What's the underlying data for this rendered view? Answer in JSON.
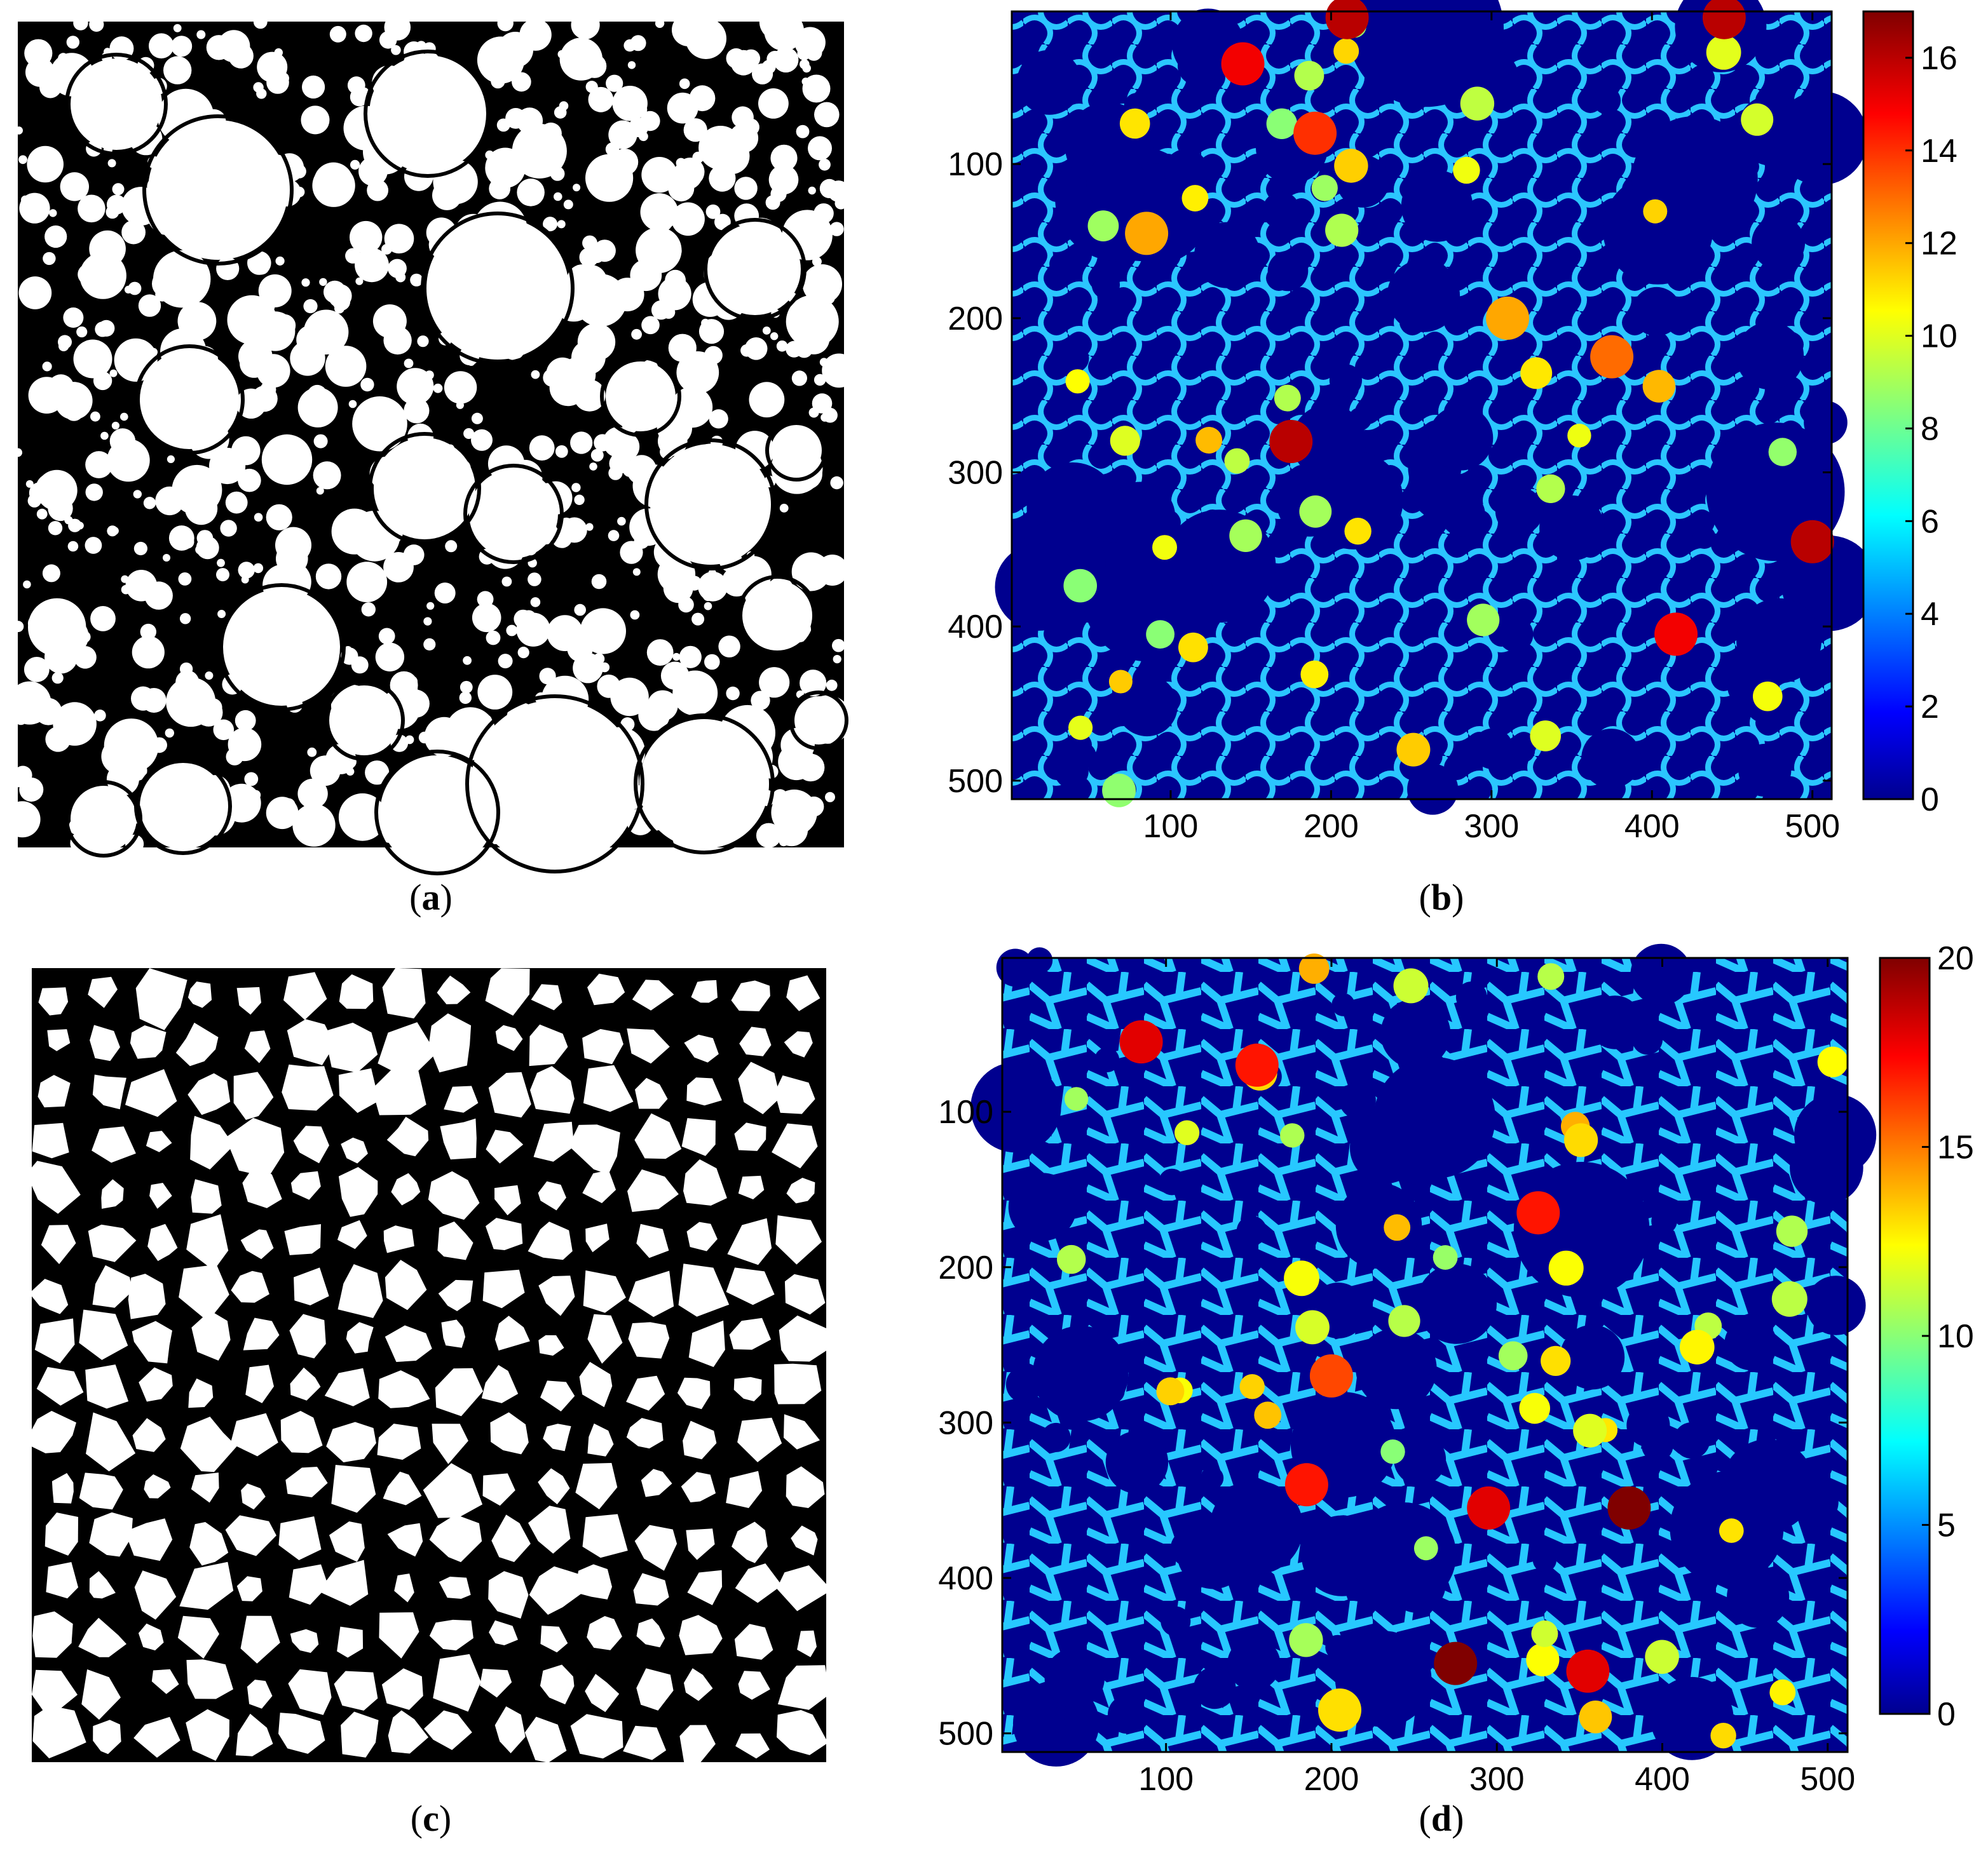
{
  "panels": [
    {
      "label": "(a)",
      "type": "binary-image",
      "content": "circular particles"
    },
    {
      "label": "(b)",
      "type": "heatmap"
    },
    {
      "label": "(c)",
      "type": "binary-image",
      "content": "angular particles"
    },
    {
      "label": "(d)",
      "type": "heatmap"
    }
  ],
  "captions": {
    "a_open": "(",
    "a_letter": "a",
    "a_close": ")",
    "b_open": "(",
    "b_letter": "b",
    "b_close": ")",
    "c_open": "(",
    "c_letter": "c",
    "c_close": ")",
    "d_open": "(",
    "d_letter": "d",
    "d_close": ")"
  },
  "colormap": {
    "name": "jet",
    "stops": [
      "#00008f",
      "#0000ff",
      "#00ffff",
      "#ffff00",
      "#ff0000",
      "#800000"
    ]
  },
  "chart_data": [
    {
      "type": "heatmap",
      "panel": "b",
      "xlim": [
        1,
        512
      ],
      "ylim": [
        1,
        512
      ],
      "y_reversed": true,
      "xticks": [
        100,
        200,
        300,
        400,
        500
      ],
      "yticks": [
        100,
        200,
        300,
        400,
        500
      ],
      "colorbar_range": [
        0,
        17
      ],
      "colorbar_ticks": [
        0,
        2,
        4,
        6,
        8,
        10,
        12,
        14,
        16
      ],
      "hotspots": [
        {
          "x": 145,
          "y": 35,
          "v": 15
        },
        {
          "x": 190,
          "y": 80,
          "v": 14
        },
        {
          "x": 85,
          "y": 145,
          "v": 12
        },
        {
          "x": 310,
          "y": 200,
          "v": 12
        },
        {
          "x": 375,
          "y": 225,
          "v": 13
        },
        {
          "x": 175,
          "y": 280,
          "v": 16
        },
        {
          "x": 500,
          "y": 345,
          "v": 16
        },
        {
          "x": 415,
          "y": 405,
          "v": 15
        },
        {
          "x": 445,
          "y": 5,
          "v": 16
        },
        {
          "x": 210,
          "y": 5,
          "v": 16
        }
      ],
      "title": "",
      "xlabel": "",
      "ylabel": ""
    },
    {
      "type": "heatmap",
      "panel": "d",
      "xlim": [
        1,
        512
      ],
      "ylim": [
        1,
        512
      ],
      "y_reversed": true,
      "xticks": [
        100,
        200,
        300,
        400,
        500
      ],
      "yticks": [
        100,
        200,
        300,
        400,
        500
      ],
      "colorbar_range": [
        0,
        20
      ],
      "colorbar_ticks": [
        0,
        5,
        10,
        15,
        20
      ],
      "hotspots": [
        {
          "x": 85,
          "y": 55,
          "v": 18
        },
        {
          "x": 155,
          "y": 70,
          "v": 17
        },
        {
          "x": 325,
          "y": 165,
          "v": 17
        },
        {
          "x": 200,
          "y": 270,
          "v": 16
        },
        {
          "x": 185,
          "y": 340,
          "v": 17
        },
        {
          "x": 295,
          "y": 355,
          "v": 18
        },
        {
          "x": 380,
          "y": 355,
          "v": 20
        },
        {
          "x": 275,
          "y": 455,
          "v": 20
        },
        {
          "x": 355,
          "y": 460,
          "v": 18
        },
        {
          "x": 205,
          "y": 485,
          "v": 13
        }
      ],
      "title": "",
      "xlabel": "",
      "ylabel": ""
    }
  ]
}
